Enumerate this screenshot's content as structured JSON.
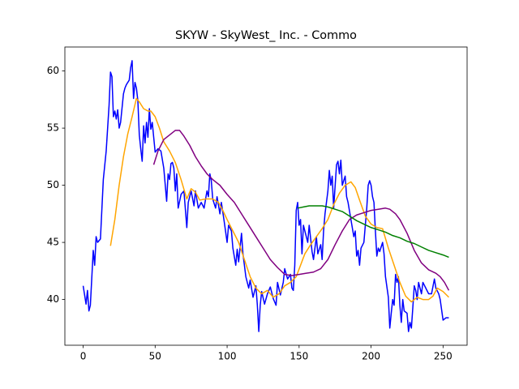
{
  "chart_data": {
    "type": "line",
    "title": "SKYW - SkyWest_ Inc. - Commo",
    "xlim": [
      -12.7,
      266.7
    ],
    "ylim": [
      36.0,
      62.1
    ],
    "xticks": [
      0,
      50,
      100,
      150,
      200,
      250
    ],
    "yticks": [
      40,
      45,
      50,
      55,
      60
    ],
    "series": [
      {
        "color": "#0000ff",
        "x": [
          0,
          2,
          3,
          4,
          5,
          7,
          8,
          9,
          10,
          12,
          14,
          16,
          18,
          19,
          20,
          21,
          22,
          23,
          24,
          25,
          26,
          28,
          29,
          30,
          31,
          32,
          33,
          34,
          35,
          36,
          37,
          38,
          39,
          40,
          41,
          42,
          43,
          44,
          45,
          46,
          47,
          48,
          50,
          52,
          54,
          56,
          58,
          59,
          60,
          61,
          62,
          63,
          64,
          65,
          66,
          68,
          70,
          72,
          73,
          75,
          77,
          78,
          80,
          82,
          84,
          86,
          87,
          88,
          89,
          90,
          92,
          93,
          95,
          96,
          98,
          100,
          101,
          103,
          104,
          106,
          107,
          108,
          110,
          111,
          113,
          115,
          116,
          118,
          120,
          121,
          122,
          123,
          124,
          126,
          128,
          130,
          132,
          134,
          135,
          137,
          139,
          140,
          142,
          144,
          145,
          146,
          147,
          148,
          149,
          150,
          151,
          152,
          153,
          154,
          156,
          157,
          159,
          160,
          162,
          163,
          165,
          166,
          167,
          168,
          170,
          171,
          172,
          173,
          174,
          176,
          177,
          178,
          179,
          180,
          182,
          183,
          184,
          186,
          188,
          189,
          190,
          191,
          192,
          193,
          195,
          196,
          197,
          198,
          199,
          200,
          201,
          202,
          203,
          204,
          205,
          206,
          208,
          209,
          210,
          212,
          213,
          214,
          215,
          216,
          217,
          218,
          219,
          220,
          221,
          222,
          223,
          225,
          226,
          227,
          228,
          229,
          230,
          231,
          232,
          233,
          235,
          236,
          238,
          240,
          242,
          244,
          245,
          247,
          248,
          250,
          252,
          254
        ],
        "values": [
          41.2,
          39.6,
          40.8,
          39.0,
          39.5,
          44.3,
          43.0,
          45.5,
          45.0,
          45.3,
          50.5,
          53,
          57,
          59.9,
          59.5,
          56,
          56.5,
          55.8,
          56.6,
          55.0,
          55.5,
          58,
          58.5,
          58.8,
          59,
          59.2,
          60.3,
          60.9,
          57.6,
          59,
          58.5,
          57.4,
          54.4,
          53.2,
          52.1,
          55.2,
          53.7,
          55.5,
          54.2,
          56.7,
          54.9,
          55.5,
          52.9,
          53.2,
          53.0,
          51.5,
          48.6,
          51,
          50.5,
          51.9,
          52,
          51.5,
          49.5,
          51,
          48.0,
          49.2,
          49.5,
          46.3,
          48.5,
          49.5,
          48.2,
          49.5,
          48.0,
          48.5,
          48.0,
          49.5,
          49.0,
          51.0,
          50.4,
          48.8,
          48.0,
          49,
          47.5,
          48.5,
          46.8,
          45.0,
          46.5,
          46.0,
          44.5,
          43.0,
          44.4,
          43.3,
          45.8,
          44,
          42.0,
          41.0,
          41.7,
          40.2,
          41.2,
          39.5,
          37.2,
          39.5,
          40.7,
          39.6,
          40.5,
          41.1,
          40.1,
          39.5,
          41.5,
          40.4,
          41.5,
          42.7,
          41.8,
          42.2,
          41.0,
          40.8,
          43.0,
          47.8,
          48.5,
          46.5,
          47.0,
          44.0,
          46.5,
          46.0,
          45.0,
          46.5,
          44.2,
          43.5,
          45.5,
          44.0,
          44.8,
          43.5,
          46,
          47.5,
          49.5,
          51.3,
          50.0,
          50.8,
          48.0,
          51.8,
          52.1,
          51.0,
          52.2,
          50.0,
          50.8,
          49.0,
          48.5,
          47.0,
          45.5,
          46.0,
          43.8,
          44.3,
          43.0,
          44.5,
          45.0,
          46.5,
          48.0,
          50.0,
          50.4,
          50.0,
          49.0,
          48.5,
          46.0,
          43.8,
          44.5,
          44.2,
          45,
          44,
          42,
          40.2,
          37.5,
          38.8,
          40.0,
          39.5,
          42.2,
          41.5,
          42,
          39.5,
          38.0,
          40,
          39.0,
          38.8,
          37.2,
          38.0,
          37.5,
          39.3,
          41.2,
          40.8,
          40.0,
          41.5,
          40.5,
          41.5,
          41.0,
          40.5,
          40.5,
          41.8,
          41.0,
          40.5,
          40.0,
          38.2,
          38.4,
          38.4
        ]
      },
      {
        "color": "#ffa500",
        "x": [
          19,
          22,
          25,
          28,
          31,
          34,
          37,
          39,
          42,
          45,
          47,
          50,
          53,
          56,
          60,
          64,
          68,
          72,
          75,
          78,
          81,
          85,
          90,
          94,
          97,
          100,
          104,
          108,
          112,
          116,
          120,
          124,
          128,
          132,
          136,
          140,
          144,
          148,
          151,
          154,
          158,
          162,
          166,
          170,
          174,
          178,
          182,
          186,
          189,
          192,
          196,
          200,
          204,
          208,
          212,
          216,
          220,
          224,
          228,
          232,
          236,
          240,
          243,
          246,
          250,
          254
        ],
        "values": [
          44.7,
          47,
          50,
          52.5,
          54.5,
          56,
          57.6,
          57.3,
          56.7,
          56.5,
          56.5,
          56,
          55,
          53.8,
          53,
          52,
          50.5,
          48.8,
          49.7,
          49.4,
          48.7,
          48.8,
          48.8,
          48.5,
          47.8,
          47,
          46,
          45,
          43.5,
          42,
          41,
          40.5,
          40.8,
          40.2,
          40.5,
          41.2,
          41.5,
          42,
          43,
          44,
          44.8,
          45.5,
          46.2,
          47,
          48.3,
          49.3,
          50,
          50.3,
          49.8,
          48.7,
          47.3,
          46.6,
          46.3,
          46.2,
          44.5,
          43,
          41.5,
          40.3,
          39.8,
          40.2,
          40.0,
          40.0,
          40.3,
          41,
          40.7,
          40.2
        ]
      },
      {
        "color": "#800080",
        "x": [
          49,
          52,
          56,
          60,
          64,
          67,
          70,
          74,
          78,
          82,
          86,
          90,
          95,
          100,
          105,
          110,
          115,
          120,
          125,
          130,
          135,
          140,
          145,
          150,
          155,
          160,
          165,
          170,
          175,
          180,
          185,
          190,
          195,
          200,
          205,
          210,
          213,
          217,
          220,
          225,
          230,
          235,
          240,
          245,
          248,
          251,
          254
        ],
        "values": [
          51.8,
          53,
          54,
          54.4,
          54.8,
          54.8,
          54.3,
          53.5,
          52.5,
          51.7,
          51,
          50.5,
          50,
          49.2,
          48.5,
          47.5,
          46.5,
          45.5,
          44.5,
          43.5,
          42.8,
          42.2,
          42.1,
          42.2,
          42.3,
          42.4,
          42.7,
          43.5,
          44.8,
          46,
          47,
          47.4,
          47.6,
          47.8,
          47.9,
          48,
          47.9,
          47.5,
          47,
          45.8,
          44.3,
          43.2,
          42.6,
          42.3,
          42,
          41.5,
          40.8
        ]
      },
      {
        "color": "#008000",
        "x": [
          149,
          153,
          157,
          161,
          166,
          170,
          175,
          180,
          185,
          190,
          195,
          200,
          205,
          210,
          215,
          220,
          225,
          230,
          235,
          240,
          245,
          250,
          254
        ],
        "values": [
          48,
          48.1,
          48.2,
          48.2,
          48.2,
          48.1,
          47.9,
          47.7,
          47.3,
          46.9,
          46.6,
          46.3,
          46.1,
          45.9,
          45.6,
          45.4,
          45.1,
          44.9,
          44.6,
          44.3,
          44.1,
          43.9,
          43.7
        ]
      }
    ]
  }
}
